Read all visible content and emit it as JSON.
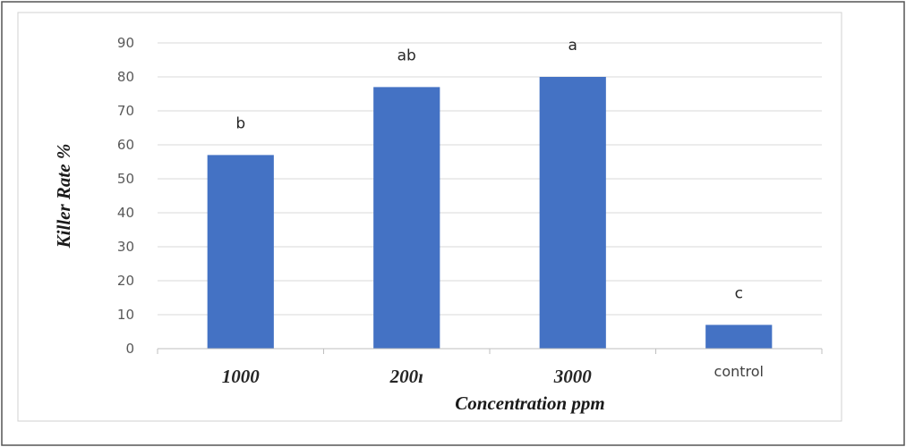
{
  "chart_data": {
    "type": "bar",
    "title": "",
    "xlabel": "Concentration ppm",
    "ylabel": "Killer Rate %",
    "categories": [
      "1000",
      "200ı",
      "3000",
      "control"
    ],
    "values": [
      57,
      77,
      80,
      7
    ],
    "data_labels": [
      "b",
      "ab",
      "a",
      "c"
    ],
    "ylim": [
      0,
      90
    ],
    "yticks": [
      "0",
      "10",
      "20",
      "30",
      "40",
      "50",
      "60",
      "70",
      "80",
      "90"
    ],
    "grid": true,
    "legend": "none",
    "bar_color": "#4472C4",
    "gridline_color": "#d9d9d9"
  }
}
